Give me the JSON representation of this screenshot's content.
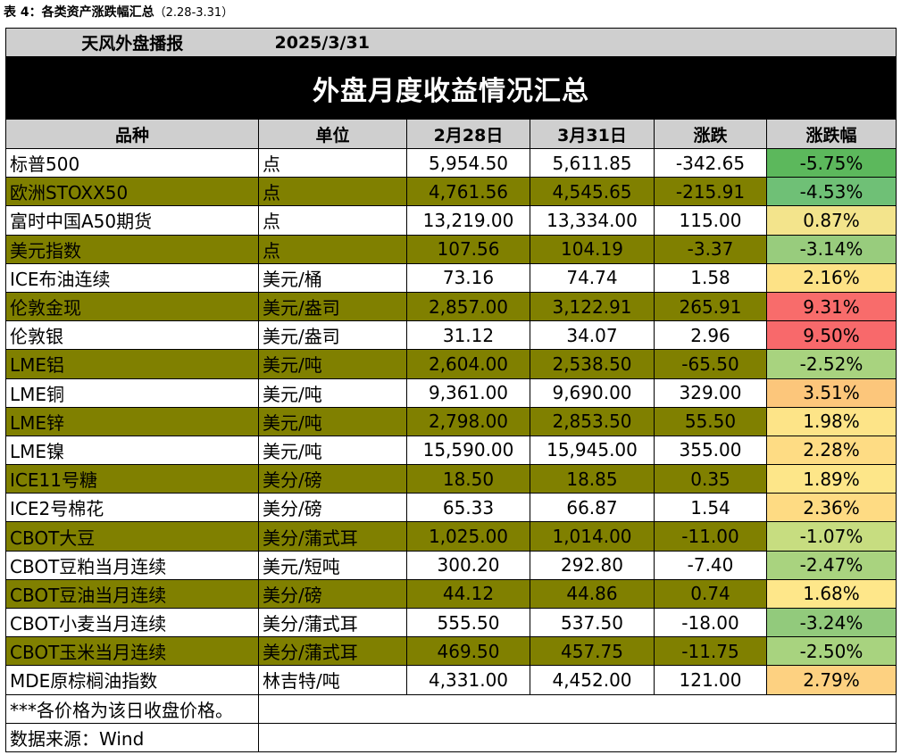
{
  "caption": {
    "label": "表 4：各类资产涨跌幅汇总",
    "range": "（2.28-3.31）"
  },
  "brand": {
    "name": "天风外盘播报",
    "date": "2025/3/31"
  },
  "title": "外盘月度收益情况汇总",
  "columns": [
    "品种",
    "单位",
    "2月28日",
    "3月31日",
    "涨跌",
    "涨跌幅"
  ],
  "rows": [
    {
      "name": "标普500",
      "unit": "点",
      "feb28": "5,954.50",
      "mar31": "5,611.85",
      "change": "-342.65",
      "pct": "-5.75%",
      "pct_color": "#5cb85c"
    },
    {
      "name": "欧洲STOXX50",
      "unit": "点",
      "feb28": "4,761.56",
      "mar31": "4,545.65",
      "change": "-215.91",
      "pct": "-4.53%",
      "pct_color": "#6fc076"
    },
    {
      "name": "富时中国A50期货",
      "unit": "点",
      "feb28": "13,219.00",
      "mar31": "13,334.00",
      "change": "115.00",
      "pct": "0.87%",
      "pct_color": "#f3e48c"
    },
    {
      "name": "美元指数",
      "unit": "点",
      "feb28": "107.56",
      "mar31": "104.19",
      "change": "-3.37",
      "pct": "-3.14%",
      "pct_color": "#98cc7d"
    },
    {
      "name": "ICE布油连续",
      "unit": "美元/桶",
      "feb28": "73.16",
      "mar31": "74.74",
      "change": "1.58",
      "pct": "2.16%",
      "pct_color": "#fde286"
    },
    {
      "name": "伦敦金现",
      "unit": "美元/盎司",
      "feb28": "2,857.00",
      "mar31": "3,122.91",
      "change": "265.91",
      "pct": "9.31%",
      "pct_color": "#f86c6b"
    },
    {
      "name": "伦敦银",
      "unit": "美元/盎司",
      "feb28": "31.12",
      "mar31": "34.07",
      "change": "2.96",
      "pct": "9.50%",
      "pct_color": "#f8696b"
    },
    {
      "name": "LME铝",
      "unit": "美元/吨",
      "feb28": "2,604.00",
      "mar31": "2,538.50",
      "change": "-65.50",
      "pct": "-2.52%",
      "pct_color": "#a8d37f"
    },
    {
      "name": "LME铜",
      "unit": "美元/吨",
      "feb28": "9,361.00",
      "mar31": "9,690.00",
      "change": "329.00",
      "pct": "3.51%",
      "pct_color": "#fcc67b"
    },
    {
      "name": "LME锌",
      "unit": "美元/吨",
      "feb28": "2,798.00",
      "mar31": "2,853.50",
      "change": "55.50",
      "pct": "1.98%",
      "pct_color": "#fde488"
    },
    {
      "name": "LME镍",
      "unit": "美元/吨",
      "feb28": "15,590.00",
      "mar31": "15,945.00",
      "change": "355.00",
      "pct": "2.28%",
      "pct_color": "#fedc84"
    },
    {
      "name": "ICE11号糖",
      "unit": "美分/磅",
      "feb28": "18.50",
      "mar31": "18.85",
      "change": "0.35",
      "pct": "1.89%",
      "pct_color": "#fde689"
    },
    {
      "name": "ICE2号棉花",
      "unit": "美分/磅",
      "feb28": "65.33",
      "mar31": "66.87",
      "change": "1.54",
      "pct": "2.36%",
      "pct_color": "#fedb83"
    },
    {
      "name": "CBOT大豆",
      "unit": "美分/蒲式耳",
      "feb28": "1,025.00",
      "mar31": "1,014.00",
      "change": "-11.00",
      "pct": "-1.07%",
      "pct_color": "#c7dd80"
    },
    {
      "name": "CBOT豆粕当月连续",
      "unit": "美元/短吨",
      "feb28": "300.20",
      "mar31": "292.80",
      "change": "-7.40",
      "pct": "-2.47%",
      "pct_color": "#a9d37f"
    },
    {
      "name": "CBOT豆油当月连续",
      "unit": "美分/磅",
      "feb28": "44.12",
      "mar31": "44.86",
      "change": "0.74",
      "pct": "1.68%",
      "pct_color": "#fee78a"
    },
    {
      "name": "CBOT小麦当月连续",
      "unit": "美分/蒲式耳",
      "feb28": "555.50",
      "mar31": "537.50",
      "change": "-18.00",
      "pct": "-3.24%",
      "pct_color": "#92ca7c"
    },
    {
      "name": "CBOT玉米当月连续",
      "unit": "美分/蒲式耳",
      "feb28": "469.50",
      "mar31": "457.75",
      "change": "-11.75",
      "pct": "-2.50%",
      "pct_color": "#a8d37f"
    },
    {
      "name": "MDE原棕榈油指数",
      "unit": "林吉特/吨",
      "feb28": "4,331.00",
      "mar31": "4,452.00",
      "change": "121.00",
      "pct": "2.79%",
      "pct_color": "#fdd181"
    }
  ],
  "notes": {
    "price_note": "***各价格为该日收盘价格。",
    "source": "数据来源：Wind"
  },
  "colors": {
    "olive": "#808000",
    "header_gray": "#cfcfcf",
    "title_black": "#000000"
  }
}
